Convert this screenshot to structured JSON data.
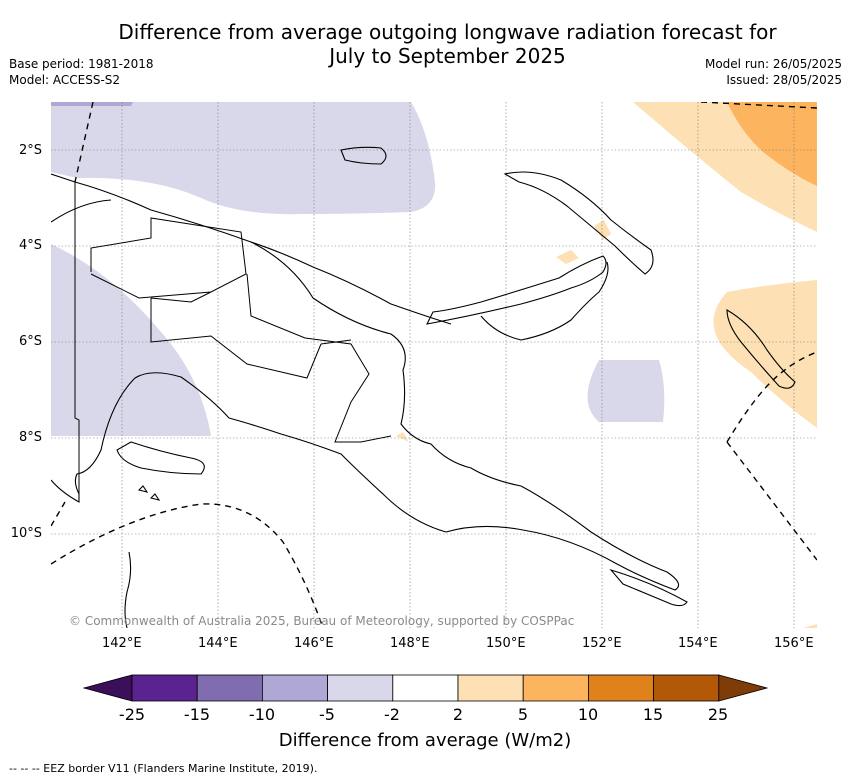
{
  "title_line1": "Difference from average outgoing longwave radiation forecast for",
  "title_line2": "July to September 2025",
  "left_meta": {
    "base_period": "Base period: 1981-2018",
    "model": "Model: ACCESS-S2"
  },
  "right_meta": {
    "model_run": "Model run: 26/05/2025",
    "issued": "Issued: 28/05/2025"
  },
  "credit": "© Commonwealth of Australia 2025, Bureau of Meteorology, supported by COSPPac",
  "footer": "--  --  -- EEZ border V11 (Flanders Marine Institute, 2019).",
  "map_axes": {
    "lon_ticks": [
      "142°E",
      "144°E",
      "146°E",
      "148°E",
      "150°E",
      "152°E",
      "154°E",
      "156°E"
    ],
    "lat_ticks": [
      "2°S",
      "4°S",
      "6°S",
      "8°S",
      "10°S"
    ]
  },
  "colorbar": {
    "title": "Difference from average (W/m2)",
    "tick_labels": [
      "-25",
      "-15",
      "-10",
      "-5",
      "-2",
      "2",
      "5",
      "10",
      "15",
      "25"
    ],
    "colors": [
      "#3c0f5a",
      "#5b2390",
      "#7f6db0",
      "#b0a8d4",
      "#d8d8ea",
      "#ffffff",
      "#fde0b4",
      "#fdb45f",
      "#e0821c",
      "#b35806",
      "#7f3b08"
    ]
  }
}
